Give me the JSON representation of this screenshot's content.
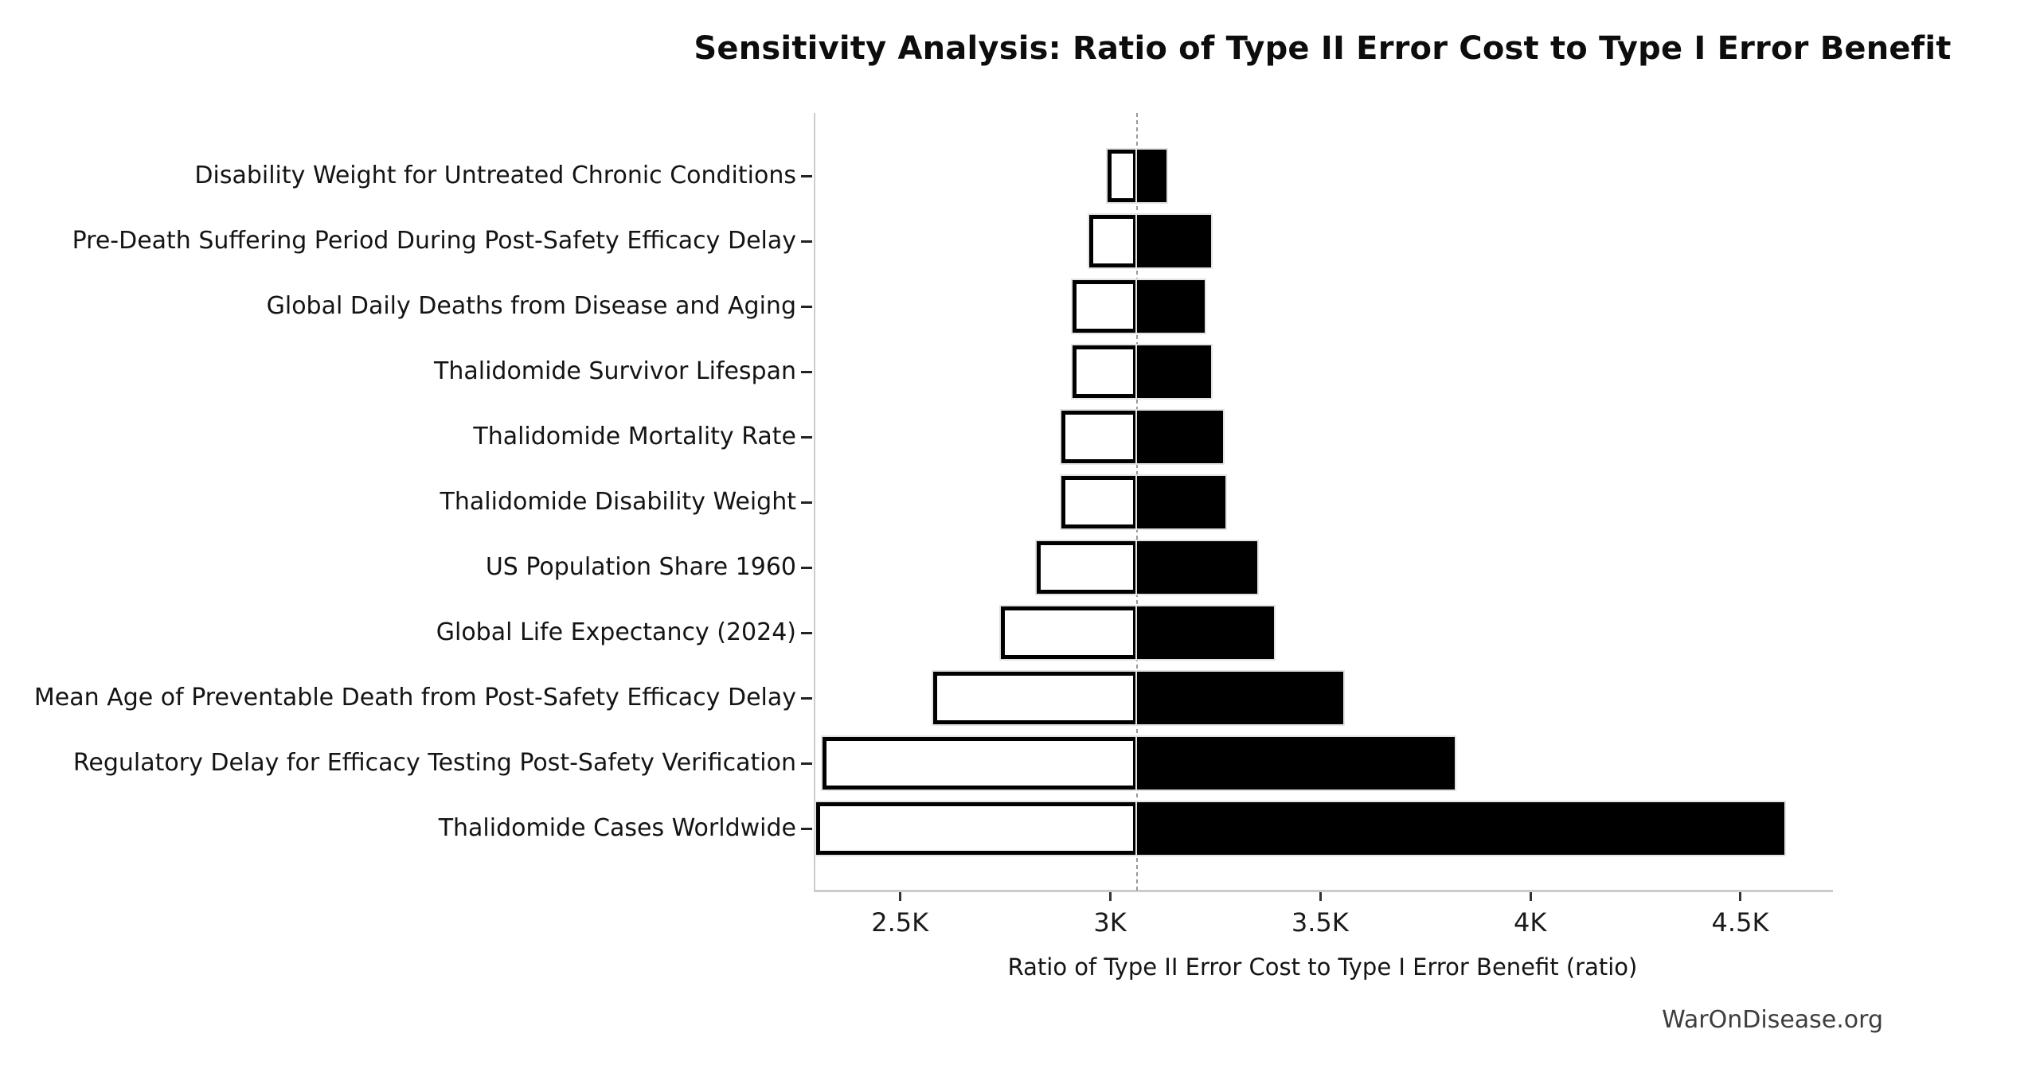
{
  "title": "Sensitivity Analysis: Ratio of Type II Error Cost to Type I Error Benefit",
  "footer": "WarOnDisease.org",
  "chart_data": {
    "type": "bar",
    "subtype": "tornado-sensitivity",
    "orientation": "horizontal",
    "title": "Sensitivity Analysis: Ratio of Type II Error Cost to Type I Error Benefit",
    "xlabel": "Ratio of Type II Error Cost to Type I Error Benefit (ratio)",
    "ylabel": "",
    "baseline": 3065,
    "xlim": [
      2295,
      4717
    ],
    "grid": false,
    "legend": "none",
    "x_ticks": [
      {
        "value": 2500,
        "label": "2.5K"
      },
      {
        "value": 3000,
        "label": "3K"
      },
      {
        "value": 3500,
        "label": "3.5K"
      },
      {
        "value": 4000,
        "label": "4K"
      },
      {
        "value": 4500,
        "label": "4.5K"
      }
    ],
    "categories": [
      "Disability Weight for Untreated Chronic Conditions",
      "Pre-Death Suffering Period During Post-Safety Efficacy Delay",
      "Global Daily Deaths from Disease and Aging",
      "Thalidomide Survivor Lifespan",
      "Thalidomide Mortality Rate",
      "Thalidomide Disability Weight",
      "US Population Share 1960",
      "Global Life Expectancy (2024)",
      "Mean Age of Preventable Death from Post-Safety Efficacy Delay",
      "Regulatory Delay for Efficacy Testing Post-Safety Verification",
      "Thalidomide Cases Worldwide"
    ],
    "series": [
      {
        "name": "Low estimate (white bar, left of baseline)",
        "values": [
          2995,
          2950,
          2910,
          2910,
          2885,
          2885,
          2825,
          2740,
          2580,
          2315,
          2300
        ]
      },
      {
        "name": "High estimate (black bar, right of baseline)",
        "values": [
          3135,
          3240,
          3225,
          3240,
          3270,
          3275,
          3350,
          3390,
          3555,
          3820,
          4605
        ]
      }
    ],
    "colors": {
      "low_fill": "#ffffff",
      "high_fill": "#000000",
      "low_edge": "#000000",
      "halo_edge": "#e3e3e3",
      "baseline_line": "#999999",
      "spine": "#cccccc",
      "text": "#141414"
    }
  }
}
